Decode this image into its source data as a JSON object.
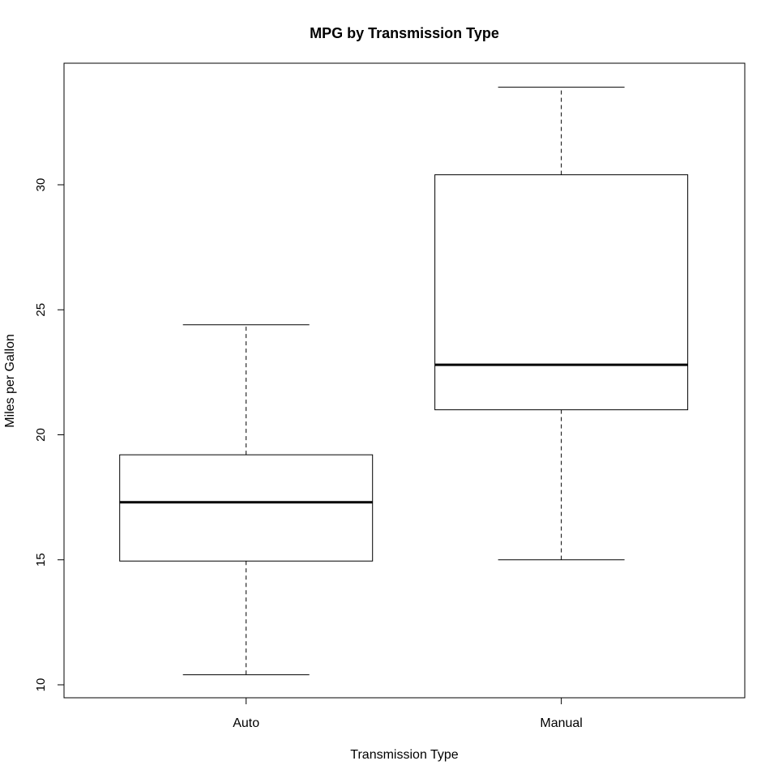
{
  "chart_data": {
    "type": "box",
    "title": "MPG by Transmission Type",
    "xlabel": "Transmission Type",
    "ylabel": "Miles per Gallon",
    "ylim": [
      9.5,
      34.9
    ],
    "yticks": [
      10,
      15,
      20,
      25,
      30
    ],
    "categories": [
      "Auto",
      "Manual"
    ],
    "boxes": [
      {
        "category": "Auto",
        "min": 10.4,
        "q1": 14.95,
        "median": 17.3,
        "q3": 19.2,
        "max": 24.4
      },
      {
        "category": "Manual",
        "min": 15.0,
        "q1": 21.0,
        "median": 22.8,
        "q3": 30.4,
        "max": 33.9
      }
    ],
    "grid": false,
    "legend": "none"
  }
}
